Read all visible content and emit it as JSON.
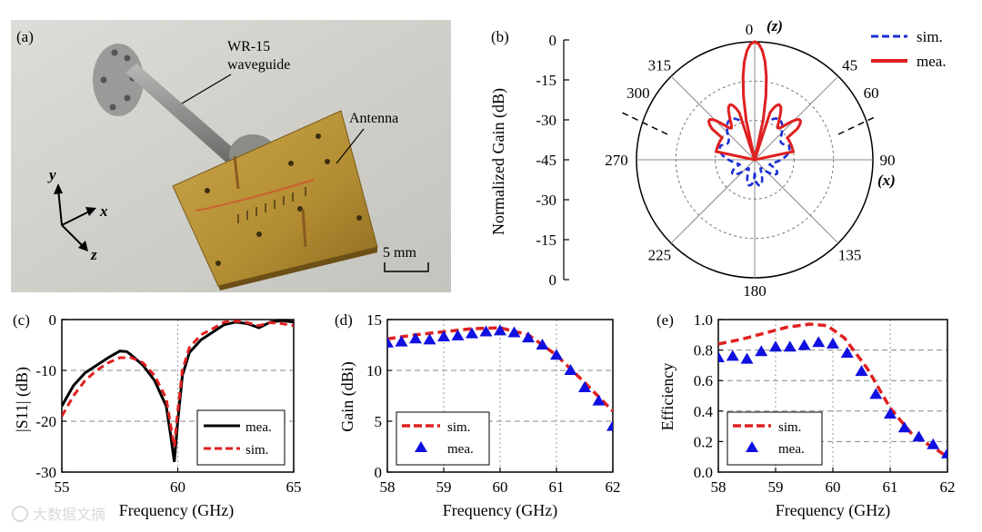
{
  "photo": {
    "panel_label": "(a)",
    "waveguide_label_line1": "WR-15",
    "waveguide_label_line2": "waveguide",
    "antenna_label": "Antenna",
    "axis_y": "y",
    "axis_x": "x",
    "axis_z": "z",
    "scale_bar": "5 mm"
  },
  "colors": {
    "sim": "#2233cc",
    "mea": "#e02020",
    "black": "#000000",
    "red_dash": "#e02020",
    "blue_mark": "#1010e0"
  },
  "watermark": "大数据文摘",
  "chart_data": [
    {
      "id": "b",
      "type": "polar",
      "panel_label": "(b)",
      "ylabel": "Normalized Gain (dB)",
      "radial_ticks": [
        "0",
        "-15",
        "-30",
        "-45",
        "-30",
        "-15",
        "0"
      ],
      "angle_labels": [
        "0",
        "45",
        "60",
        "90",
        "135",
        "180",
        "225",
        "270",
        "300",
        "315"
      ],
      "z_label": "(z)",
      "x_label": "(x)",
      "legend": [
        "sim.",
        "mea."
      ],
      "rlim": [
        -45,
        0
      ]
    },
    {
      "id": "c",
      "type": "line",
      "panel_label": "(c)",
      "xlabel": "Frequency (GHz)",
      "ylabel": "|S11| (dB)",
      "xlim": [
        55,
        65
      ],
      "ylim": [
        -30,
        0
      ],
      "xticks": [
        "55",
        "60",
        "65"
      ],
      "yticks": [
        "0",
        "-10",
        "-20",
        "-30"
      ],
      "series": [
        {
          "name": "mea.",
          "x": [
            55,
            55.5,
            56,
            56.5,
            57,
            57.5,
            57.8,
            58,
            58.5,
            59,
            59.5,
            59.7,
            59.85,
            60,
            60.2,
            60.5,
            61,
            61.5,
            62,
            62.5,
            63,
            63.5,
            64,
            64.5,
            65
          ],
          "y": [
            -17,
            -13,
            -10.5,
            -9,
            -7.5,
            -6.2,
            -6.3,
            -7,
            -9,
            -12,
            -17,
            -23,
            -28,
            -20,
            -11,
            -6.5,
            -4,
            -2.5,
            -1,
            -0.5,
            -0.8,
            -1.6,
            -0.5,
            -0.2,
            -0.5
          ]
        },
        {
          "name": "sim.",
          "x": [
            55,
            55.5,
            56,
            56.5,
            57,
            57.5,
            58,
            58.5,
            59,
            59.5,
            59.7,
            59.85,
            60,
            60.2,
            60.5,
            61,
            61.5,
            62,
            62.5,
            63,
            63.5,
            64,
            64.5,
            65
          ],
          "y": [
            -19,
            -15,
            -12,
            -10,
            -8.5,
            -7.5,
            -7.5,
            -8.5,
            -11,
            -15.5,
            -21,
            -25,
            -18,
            -10,
            -5.5,
            -3,
            -1.8,
            -0.5,
            -0.3,
            -0.6,
            -1.2,
            -0.6,
            -0.8,
            -1.2
          ]
        }
      ]
    },
    {
      "id": "d",
      "type": "line+scatter",
      "panel_label": "(d)",
      "xlabel": "Frequency (GHz)",
      "ylabel": "Gain (dBi)",
      "xlim": [
        58,
        62
      ],
      "ylim": [
        0,
        15
      ],
      "xticks": [
        "58",
        "59",
        "60",
        "61",
        "62"
      ],
      "yticks": [
        "0",
        "5",
        "10",
        "15"
      ],
      "series": [
        {
          "name": "sim.",
          "x": [
            58,
            58.5,
            59,
            59.5,
            60,
            60.5,
            61,
            61.5,
            62
          ],
          "y": [
            13.1,
            13.5,
            13.8,
            14.1,
            14.2,
            13.5,
            11.5,
            8.8,
            6.0
          ]
        },
        {
          "name": "mea.",
          "x": [
            58,
            58.25,
            58.5,
            58.75,
            59,
            59.25,
            59.5,
            59.75,
            60,
            60.25,
            60.5,
            60.75,
            61,
            61.25,
            61.5,
            61.75,
            62
          ],
          "y": [
            12.7,
            12.8,
            13.1,
            13.0,
            13.3,
            13.4,
            13.6,
            13.8,
            13.9,
            13.7,
            13.2,
            12.5,
            11.5,
            10.0,
            8.3,
            7.0,
            4.5
          ]
        }
      ]
    },
    {
      "id": "e",
      "type": "line+scatter",
      "panel_label": "(e)",
      "xlabel": "Frequency (GHz)",
      "ylabel": "Efficiency",
      "xlim": [
        58,
        62
      ],
      "ylim": [
        0,
        1
      ],
      "xticks": [
        "58",
        "59",
        "60",
        "61",
        "62"
      ],
      "yticks": [
        "0.0",
        "0.2",
        "0.4",
        "0.6",
        "0.8",
        "1.0"
      ],
      "series": [
        {
          "name": "sim.",
          "x": [
            58,
            58.4,
            58.8,
            59.2,
            59.6,
            59.9,
            60.2,
            60.6,
            61,
            61.4,
            61.8,
            62
          ],
          "y": [
            0.84,
            0.87,
            0.91,
            0.95,
            0.97,
            0.96,
            0.88,
            0.68,
            0.42,
            0.24,
            0.15,
            0.1
          ]
        },
        {
          "name": "mea.",
          "x": [
            58,
            58.25,
            58.5,
            58.75,
            59,
            59.25,
            59.5,
            59.75,
            60,
            60.25,
            60.5,
            60.75,
            61,
            61.25,
            61.5,
            61.75,
            62
          ],
          "y": [
            0.75,
            0.76,
            0.74,
            0.79,
            0.82,
            0.82,
            0.83,
            0.85,
            0.84,
            0.78,
            0.66,
            0.51,
            0.38,
            0.29,
            0.23,
            0.18,
            0.12
          ]
        }
      ]
    }
  ]
}
